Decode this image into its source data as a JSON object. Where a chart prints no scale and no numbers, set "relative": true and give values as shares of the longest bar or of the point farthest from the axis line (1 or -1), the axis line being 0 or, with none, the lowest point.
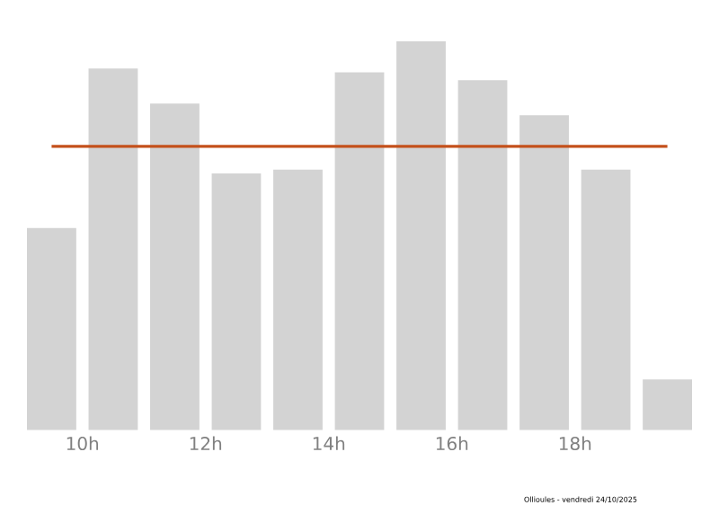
{
  "chart_data": {
    "type": "bar",
    "relative": true,
    "x": [
      9.5,
      10.5,
      11.5,
      12.5,
      13.5,
      14.5,
      15.5,
      16.5,
      17.5,
      18.5,
      19.5
    ],
    "values": [
      0.52,
      0.93,
      0.84,
      0.66,
      0.67,
      0.92,
      1,
      0.9,
      0.81,
      0.67,
      0.13
    ],
    "color": "#d3d3d3",
    "xlim": [
      9.1,
      19.9
    ],
    "xticks": [
      {
        "value": 10,
        "label": "10h"
      },
      {
        "value": 12,
        "label": "12h"
      },
      {
        "value": 14,
        "label": "14h"
      },
      {
        "value": 16,
        "label": "16h"
      },
      {
        "value": 18,
        "label": "18h"
      }
    ],
    "ref_lines": [
      {
        "axis": "y",
        "value": 0.73,
        "color": "#c4501b"
      }
    ],
    "annotations": [
      "Ollioules - vendredi 24/10/2025"
    ]
  }
}
